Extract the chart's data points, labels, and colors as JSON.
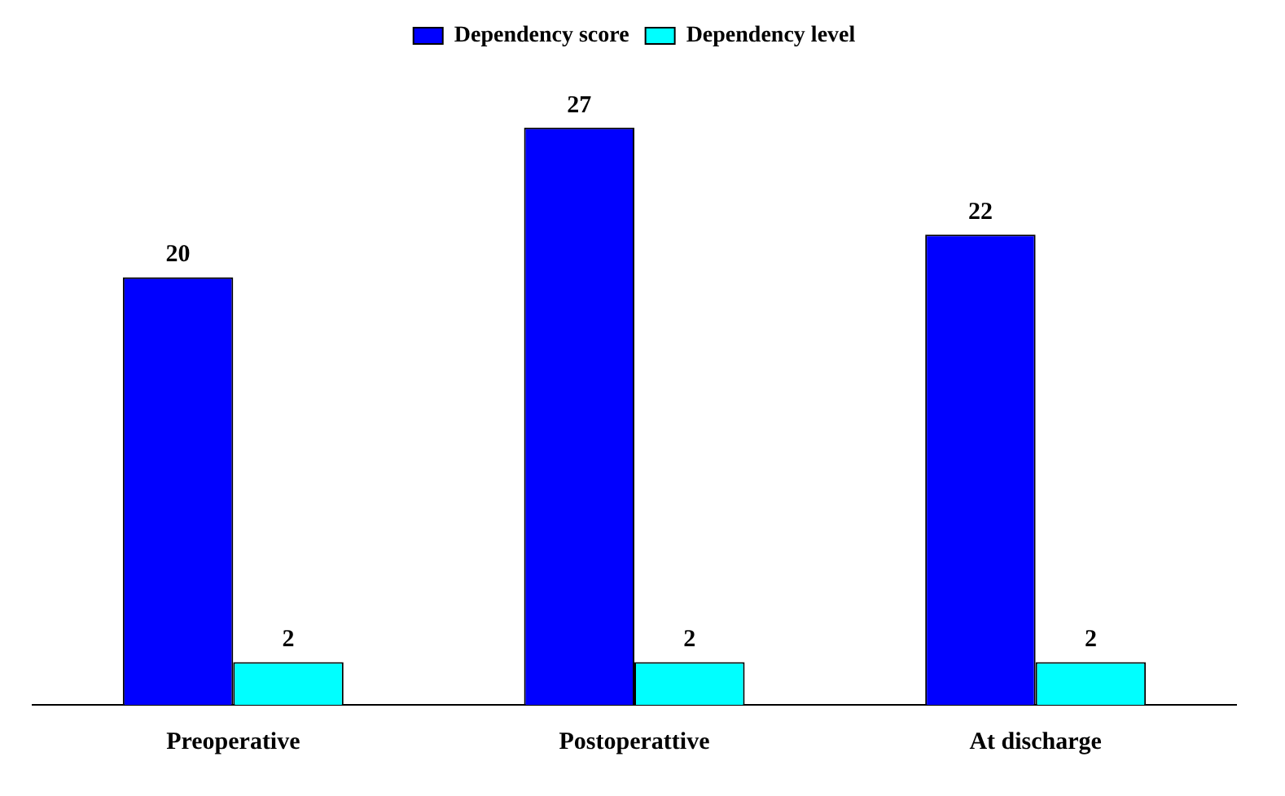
{
  "chart_data": {
    "type": "bar",
    "categories": [
      "Preoperative",
      "Postoperattive",
      "At discharge"
    ],
    "series": [
      {
        "name": "Dependency score",
        "color": "#0000ff",
        "values": [
          20,
          27,
          22
        ]
      },
      {
        "name": "Dependency level",
        "color": "#00ffff",
        "values": [
          2,
          2,
          2
        ]
      }
    ],
    "data_labels": true,
    "legend": "top",
    "grid": false
  }
}
